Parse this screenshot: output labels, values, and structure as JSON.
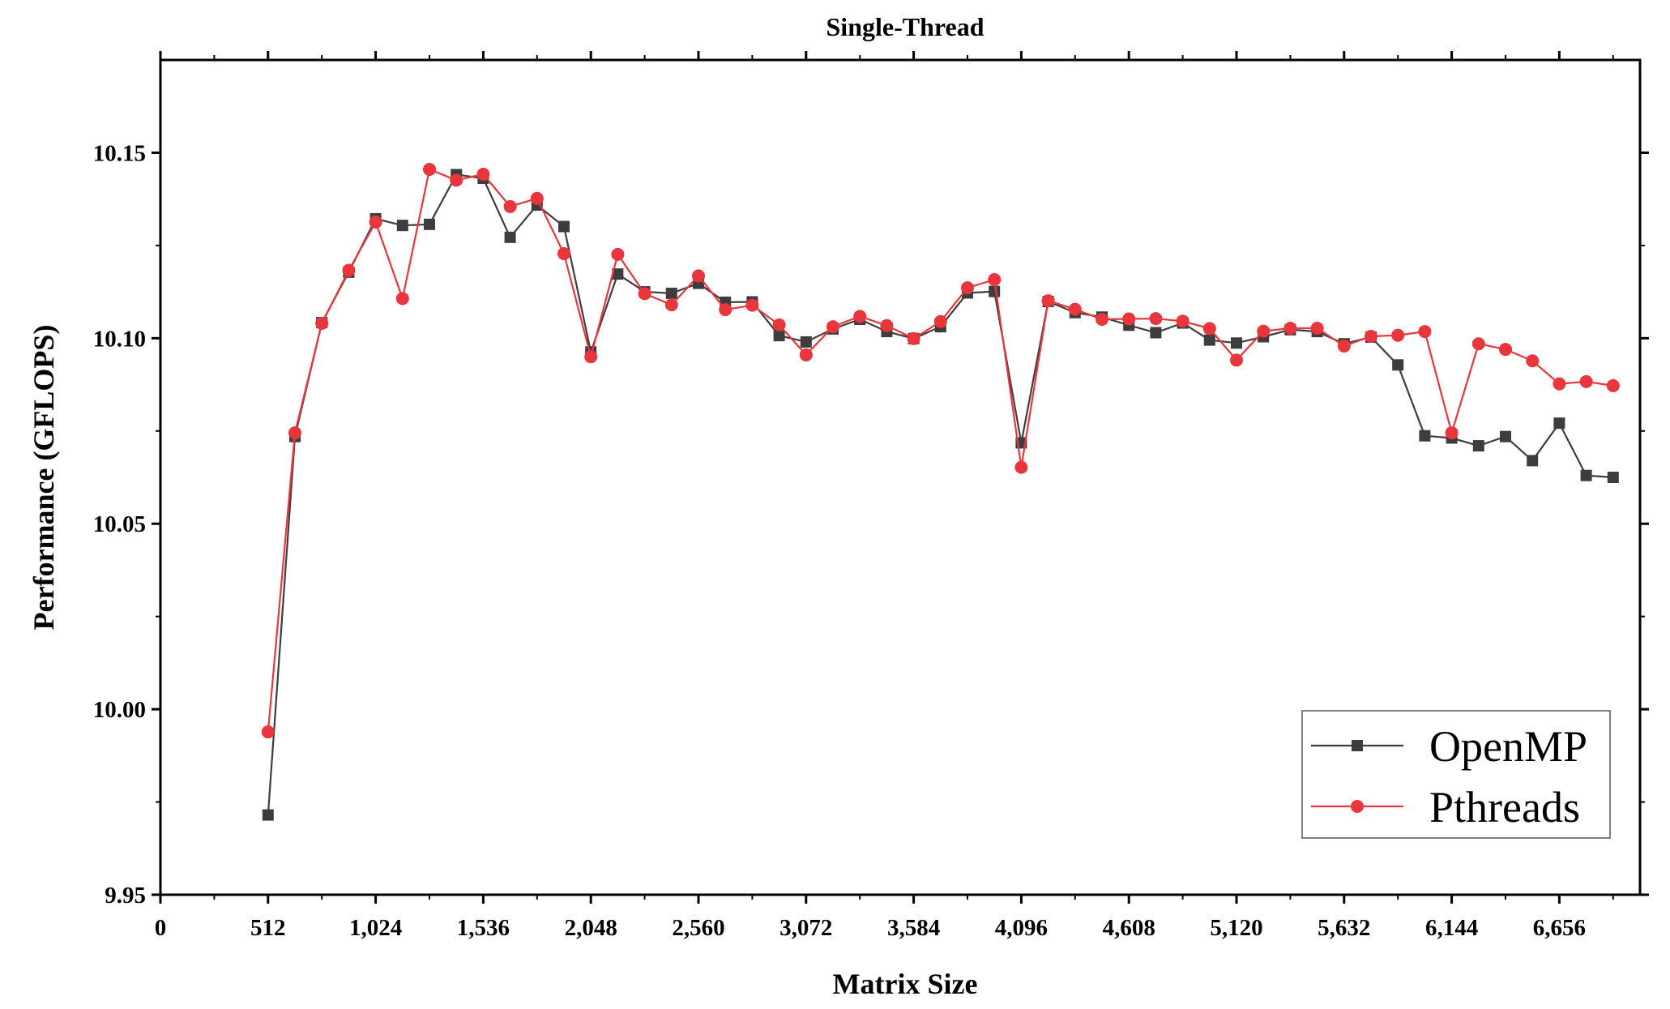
{
  "chart_data": {
    "type": "line",
    "title": "Single-Thread",
    "xlabel": "Matrix Size",
    "ylabel": "Performance (GFLOPS)",
    "xlim": [
      0,
      7040
    ],
    "ylim": [
      9.95,
      10.175
    ],
    "x_ticks": [
      0,
      512,
      1024,
      1536,
      2048,
      2560,
      3072,
      3584,
      4096,
      4608,
      5120,
      5632,
      6144,
      6656
    ],
    "x_tick_labels": [
      "0",
      "512",
      "1,024",
      "1,536",
      "2,048",
      "2,560",
      "3,072",
      "3,584",
      "4,096",
      "4,608",
      "5,120",
      "5,632",
      "6,144",
      "6,656"
    ],
    "y_ticks": [
      9.95,
      10.0,
      10.05,
      10.1,
      10.15
    ],
    "y_tick_labels": [
      "9.95",
      "10.00",
      "10.05",
      "10.10",
      "10.15"
    ],
    "legend_position": "bottom-right",
    "x": [
      512,
      640,
      768,
      896,
      1024,
      1152,
      1280,
      1408,
      1536,
      1664,
      1792,
      1920,
      2048,
      2176,
      2304,
      2432,
      2560,
      2688,
      2816,
      2944,
      3072,
      3200,
      3328,
      3456,
      3584,
      3712,
      3840,
      3968,
      4096,
      4224,
      4352,
      4480,
      4608,
      4736,
      4864,
      4992,
      5120,
      5248,
      5376,
      5504,
      5632,
      5760,
      5888,
      6016,
      6144,
      6272,
      6400,
      6528,
      6656,
      6784,
      6912
    ],
    "series": [
      {
        "name": "OpenMP",
        "color": "#3d3d3d",
        "marker": "square",
        "values": [
          9.9715,
          10.0735,
          10.1042,
          10.1178,
          10.1322,
          10.1304,
          10.1307,
          10.1441,
          10.1431,
          10.1272,
          10.1359,
          10.1301,
          10.0963,
          10.1173,
          10.1125,
          10.1121,
          10.1148,
          10.1097,
          10.1098,
          10.1007,
          10.099,
          10.1025,
          10.1051,
          10.1018,
          10.0999,
          10.1031,
          10.1122,
          10.1126,
          10.0718,
          10.1099,
          10.1069,
          10.1057,
          10.1035,
          10.1015,
          10.1041,
          10.0995,
          10.0987,
          10.1004,
          10.1023,
          10.1018,
          10.0985,
          10.1003,
          10.0928,
          10.0737,
          10.0731,
          10.071,
          10.0735,
          10.067,
          10.0771,
          10.063,
          10.0625
        ]
      },
      {
        "name": "Pthreads",
        "color": "#e8363c",
        "marker": "circle",
        "values": [
          9.9939,
          10.0745,
          10.104,
          10.1183,
          10.1313,
          10.1107,
          10.1455,
          10.1426,
          10.1442,
          10.1355,
          10.1377,
          10.1228,
          10.095,
          10.1226,
          10.112,
          10.109,
          10.1168,
          10.1077,
          10.1089,
          10.1036,
          10.0955,
          10.1031,
          10.1059,
          10.1034,
          10.0999,
          10.1045,
          10.1136,
          10.1158,
          10.0652,
          10.1101,
          10.1078,
          10.1051,
          10.1052,
          10.1053,
          10.1046,
          10.1026,
          10.0941,
          10.1019,
          10.1027,
          10.1027,
          10.0979,
          10.1005,
          10.1008,
          10.1018,
          10.0745,
          10.0985,
          10.097,
          10.0939,
          10.0877,
          10.0883,
          10.0872
        ]
      }
    ]
  }
}
